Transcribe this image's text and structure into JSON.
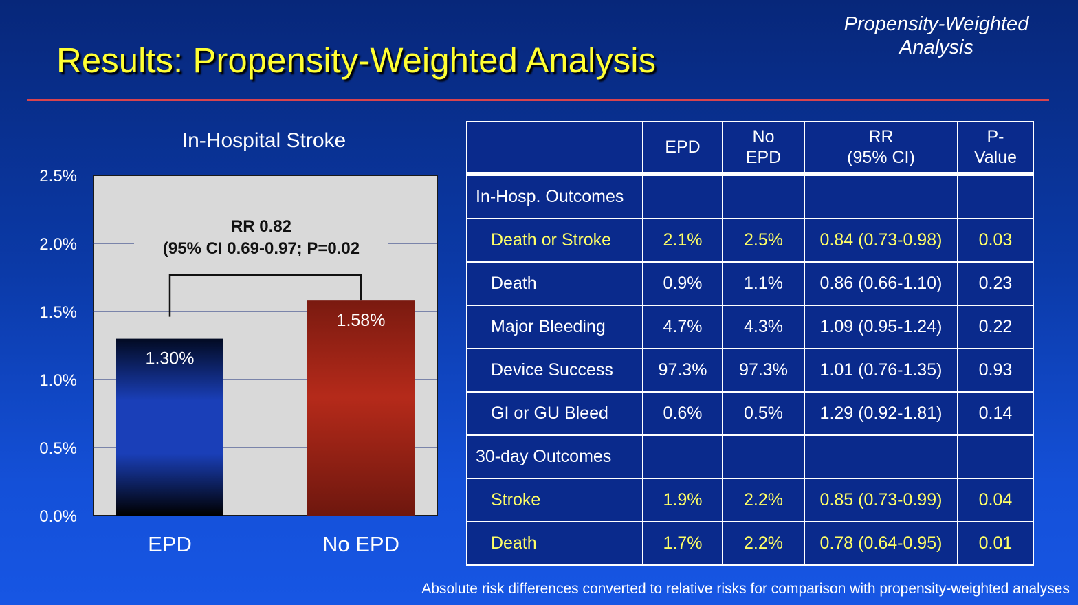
{
  "slide": {
    "title": "Results: Propensity-Weighted Analysis",
    "corner_tag_line1": "Propensity-Weighted",
    "corner_tag_line2": "Analysis",
    "footnote": "Absolute risk differences converted to relative risks for comparison with propensity-weighted analyses"
  },
  "chart_data": {
    "type": "bar",
    "title": "In-Hospital Stroke",
    "categories": [
      "EPD",
      "No EPD"
    ],
    "values": [
      1.3,
      1.58
    ],
    "value_labels": [
      "1.30%",
      "1.58%"
    ],
    "ylim": [
      0,
      2.5
    ],
    "yticks": [
      0,
      0.5,
      1.0,
      1.5,
      2.0,
      2.5
    ],
    "ytick_labels": [
      "0.0%",
      "0.5%",
      "1.0%",
      "1.5%",
      "2.0%",
      "2.5%"
    ],
    "grid": true,
    "colors": {
      "EPD": "#1a3fb8",
      "No EPD": "#b52a1a"
    },
    "annotation_line1": "RR 0.82",
    "annotation_line2": "(95% CI 0.69-0.97;  P=0.02"
  },
  "table": {
    "headers": [
      {
        "line1": "",
        "line2": ""
      },
      {
        "line1": "EPD",
        "line2": ""
      },
      {
        "line1": "No",
        "line2": "EPD"
      },
      {
        "line1": "RR",
        "line2": "(95% CI)"
      },
      {
        "line1": "P-",
        "line2": "Value"
      }
    ],
    "rows": [
      {
        "kind": "section",
        "label": "In-Hosp. Outcomes",
        "epd": "",
        "no_epd": "",
        "rr": "",
        "p": ""
      },
      {
        "kind": "highlight",
        "label": "Death or Stroke",
        "epd": "2.1%",
        "no_epd": "2.5%",
        "rr": "0.84 (0.73-0.98)",
        "p": "0.03"
      },
      {
        "kind": "normal",
        "label": "Death",
        "epd": "0.9%",
        "no_epd": "1.1%",
        "rr": "0.86 (0.66-1.10)",
        "p": "0.23"
      },
      {
        "kind": "normal",
        "label": "Major Bleeding",
        "epd": "4.7%",
        "no_epd": "4.3%",
        "rr": "1.09 (0.95-1.24)",
        "p": "0.22"
      },
      {
        "kind": "normal",
        "label": "Device Success",
        "epd": "97.3%",
        "no_epd": "97.3%",
        "rr": "1.01 (0.76-1.35)",
        "p": "0.93"
      },
      {
        "kind": "normal",
        "label": "GI or GU Bleed",
        "epd": "0.6%",
        "no_epd": "0.5%",
        "rr": "1.29 (0.92-1.81)",
        "p": "0.14"
      },
      {
        "kind": "section",
        "label": "30-day Outcomes",
        "epd": "",
        "no_epd": "",
        "rr": "",
        "p": ""
      },
      {
        "kind": "highlight",
        "label": "Stroke",
        "epd": "1.9%",
        "no_epd": "2.2%",
        "rr": "0.85 (0.73-0.99)",
        "p": "0.04"
      },
      {
        "kind": "highlight",
        "label": "Death",
        "epd": "1.7%",
        "no_epd": "2.2%",
        "rr": "0.78 (0.64-0.95)",
        "p": "0.01"
      }
    ]
  }
}
